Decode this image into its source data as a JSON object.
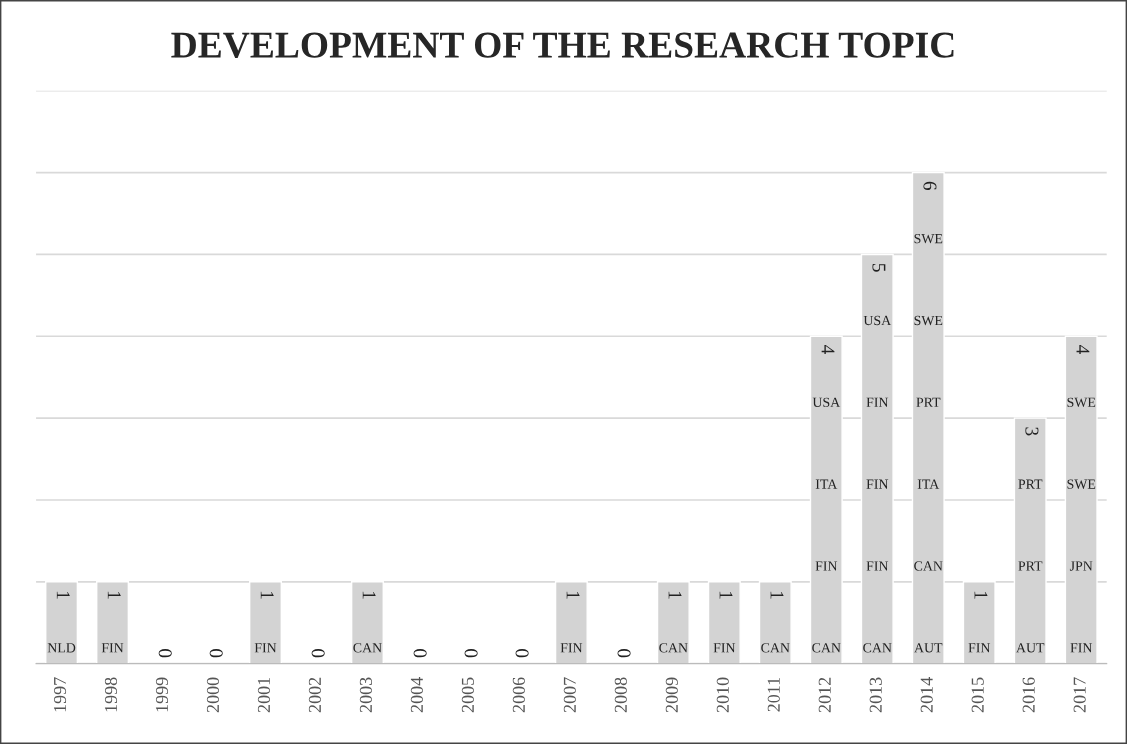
{
  "chart_data": {
    "type": "bar",
    "title": "DEVELOPMENT OF THE RESEARCH TOPIC",
    "categories": [
      "1997",
      "1998",
      "1999",
      "2000",
      "2001",
      "2002",
      "2003",
      "2004",
      "2005",
      "2006",
      "2007",
      "2008",
      "2009",
      "2010",
      "2011",
      "2012",
      "2013",
      "2014",
      "2015",
      "2016",
      "2017"
    ],
    "values": [
      1,
      1,
      0,
      0,
      1,
      0,
      1,
      0,
      0,
      0,
      1,
      0,
      1,
      1,
      1,
      4,
      5,
      6,
      1,
      3,
      4
    ],
    "color": "#d3d3d3",
    "ylim": [
      0,
      7
    ],
    "yticks": [
      {
        "value": 0,
        "label": null
      },
      {
        "value": 1,
        "label": null
      },
      {
        "value": 2,
        "label": null
      },
      {
        "value": 3,
        "label": null
      },
      {
        "value": 4,
        "label": null
      },
      {
        "value": 5,
        "label": null
      },
      {
        "value": 6,
        "label": null
      },
      {
        "value": 7,
        "label": null
      }
    ],
    "grid": "y",
    "data_labels": true,
    "annotations": [
      "NLD",
      "FIN",
      "FIN",
      "CAN",
      "FIN",
      "CAN",
      "FIN",
      "CAN",
      "CAN",
      "FIN",
      "ITA",
      "USA",
      "CAN",
      "FIN",
      "FIN",
      "FIN",
      "USA",
      "AUT",
      "CAN",
      "ITA",
      "PRT",
      "SWE",
      "SWE",
      "FIN",
      "AUT",
      "PRT",
      "PRT",
      "FIN",
      "JPN",
      "SWE",
      "SWE"
    ]
  }
}
